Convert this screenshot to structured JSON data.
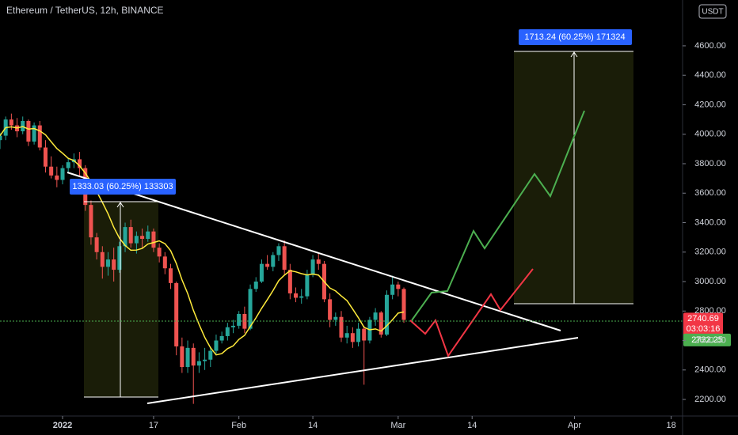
{
  "chart_data": {
    "type": "candlestick",
    "title": "Ethereum / TetherUS, 12h, BINANCE",
    "currency": "USDT",
    "x": [
      -11,
      -10,
      -9,
      -8,
      -7,
      -6,
      -5,
      -4,
      -3,
      -2,
      -1,
      0,
      1,
      2,
      3,
      4,
      5,
      6,
      7,
      8,
      9,
      10,
      11,
      12,
      13,
      14,
      15,
      16,
      17,
      18,
      19,
      20,
      21,
      22,
      23,
      24,
      25,
      26,
      27,
      28,
      29,
      30,
      31,
      32,
      33,
      34,
      35,
      36,
      37,
      38,
      39,
      40,
      41,
      42,
      43,
      44,
      45,
      46,
      47,
      48,
      49,
      50,
      51,
      52,
      53,
      54,
      55,
      56,
      57,
      58,
      59,
      60
    ],
    "open": [
      3960,
      3990,
      4100,
      4060,
      4020,
      4090,
      3950,
      4060,
      3910,
      3780,
      3720,
      3690,
      3770,
      3810,
      3830,
      3770,
      3520,
      3300,
      3200,
      3100,
      3150,
      3080,
      3240,
      3370,
      3260,
      3310,
      3290,
      3340,
      3230,
      3170,
      3090,
      2990,
      2560,
      2420,
      2550,
      2430,
      2460,
      2470,
      2530,
      2600,
      2630,
      2690,
      2700,
      2780,
      2680,
      2950,
      3000,
      3120,
      3100,
      3180,
      3240,
      3080,
      2920,
      2890,
      2900,
      3050,
      3150,
      3120,
      2880,
      2740,
      2760,
      2620,
      2650,
      2590,
      2680,
      2600,
      2740,
      2790,
      2640,
      2910,
      2980,
      2950
    ],
    "high": [
      4010,
      4120,
      4140,
      4110,
      4120,
      4100,
      4080,
      4090,
      3960,
      3850,
      3780,
      3790,
      3840,
      3870,
      3880,
      3790,
      3550,
      3330,
      3240,
      3200,
      3230,
      3270,
      3400,
      3420,
      3340,
      3360,
      3380,
      3360,
      3260,
      3200,
      3120,
      3000,
      2620,
      2600,
      2580,
      2520,
      2550,
      2560,
      2640,
      2660,
      2720,
      2740,
      2800,
      2830,
      2980,
      3030,
      3150,
      3180,
      3200,
      3260,
      3280,
      3120,
      2960,
      2950,
      3080,
      3180,
      3190,
      3140,
      2920,
      2790,
      2800,
      2700,
      2690,
      2720,
      2700,
      2760,
      2820,
      2800,
      2940,
      3040,
      3000,
      2960
    ],
    "low": [
      3900,
      3960,
      4030,
      3980,
      4000,
      3920,
      3930,
      3890,
      3740,
      3700,
      3640,
      3660,
      3740,
      3770,
      3720,
      3480,
      3250,
      3150,
      3020,
      3040,
      3000,
      3060,
      3200,
      3230,
      3190,
      3230,
      3270,
      3200,
      3130,
      3050,
      2950,
      2500,
      2380,
      2380,
      2170,
      2380,
      2400,
      2420,
      2510,
      2580,
      2600,
      2650,
      2680,
      2650,
      2670,
      2930,
      2990,
      3080,
      3070,
      3140,
      3050,
      2880,
      2860,
      2850,
      2880,
      3030,
      3080,
      2860,
      2690,
      2700,
      2590,
      2580,
      2550,
      2560,
      2300,
      2580,
      2700,
      2620,
      2630,
      2880,
      2900,
      2720
    ],
    "close": [
      3990,
      4100,
      4060,
      4020,
      4090,
      3950,
      4060,
      3910,
      3780,
      3720,
      3690,
      3770,
      3810,
      3830,
      3770,
      3520,
      3300,
      3200,
      3100,
      3150,
      3080,
      3240,
      3370,
      3260,
      3310,
      3290,
      3340,
      3230,
      3170,
      3090,
      2990,
      2560,
      2420,
      2550,
      2430,
      2460,
      2470,
      2530,
      2600,
      2630,
      2690,
      2700,
      2780,
      2680,
      2950,
      3000,
      3120,
      3100,
      3180,
      3240,
      3080,
      2920,
      2890,
      2900,
      3050,
      3150,
      3120,
      2880,
      2740,
      2760,
      2620,
      2650,
      2590,
      2680,
      2600,
      2740,
      2790,
      2640,
      2910,
      2980,
      2950,
      2740
    ],
    "up_color": "#26a69a",
    "down_color": "#ef5350",
    "ma_color": "#ffeb3b",
    "xlim": [
      -11,
      109
    ],
    "xticks": [
      {
        "value": 0,
        "label": "2022"
      },
      {
        "value": 16,
        "label": "17"
      },
      {
        "value": 31,
        "label": "Feb"
      },
      {
        "value": 44,
        "label": "14"
      },
      {
        "value": 59,
        "label": "Mar"
      },
      {
        "value": 72,
        "label": "14"
      },
      {
        "value": 90,
        "label": "Apr"
      },
      {
        "value": 107,
        "label": "18"
      }
    ],
    "ylim": [
      2109,
      4911
    ],
    "yticks": [
      {
        "value": 2200,
        "label": "2200.00"
      },
      {
        "value": 2400,
        "label": "2400.00"
      },
      {
        "value": 2600,
        "label": "2600.00"
      },
      {
        "value": 2800,
        "label": "2800.00"
      },
      {
        "value": 3000,
        "label": "3000.00"
      },
      {
        "value": 3200,
        "label": "3200.00"
      },
      {
        "value": 3400,
        "label": "3400.00"
      },
      {
        "value": 3600,
        "label": "3600.00"
      },
      {
        "value": 3800,
        "label": "3800.00"
      },
      {
        "value": 4000,
        "label": "4000.00"
      },
      {
        "value": 4200,
        "label": "4200.00"
      },
      {
        "value": 4400,
        "label": "4400.00"
      },
      {
        "value": 4600,
        "label": "4600.00"
      }
    ],
    "annotations": [
      "1333.03 (60.25%) 133303",
      "1713.24 (60.25%) 171324"
    ],
    "last_price": {
      "value": 2740.69,
      "label": "2740.69"
    },
    "countdown": "03:03:16",
    "bid_price": {
      "value": 2732.25,
      "label": "2732.25"
    }
  }
}
